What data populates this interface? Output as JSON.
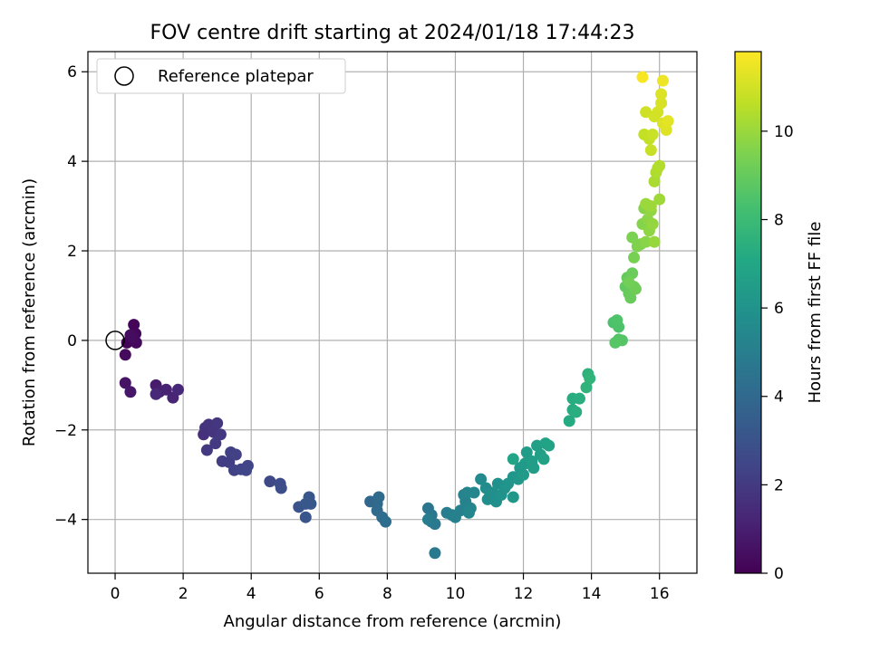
{
  "chart_data": {
    "type": "scatter",
    "title": "FOV centre drift starting at 2024/01/18 17:44:23",
    "xlabel": "Angular distance from reference (arcmin)",
    "ylabel": "Rotation from reference (arcmin)",
    "xlim": [
      -0.8,
      17.1
    ],
    "ylim": [
      -5.2,
      6.45
    ],
    "x_ticks": [
      0,
      2,
      4,
      6,
      8,
      10,
      12,
      14,
      16
    ],
    "y_ticks": [
      -4,
      -2,
      0,
      2,
      4,
      6
    ],
    "grid": true,
    "legend": {
      "position": "top-left",
      "entries": [
        {
          "label": "Reference platepar",
          "marker": "open-circle"
        }
      ]
    },
    "reference_point": {
      "x": 0,
      "y": 0
    },
    "colorbar": {
      "label": "Hours from first FF file",
      "colormap": "viridis",
      "range": [
        0,
        11.8
      ],
      "ticks": [
        0,
        2,
        4,
        6,
        8,
        10
      ]
    },
    "points": [
      [
        0.35,
        -0.05,
        0.1
      ],
      [
        0.55,
        0.35,
        0.15
      ],
      [
        0.6,
        0.15,
        0.2
      ],
      [
        0.62,
        -0.05,
        0.25
      ],
      [
        0.3,
        -0.32,
        0.3
      ],
      [
        0.55,
        0.05,
        0.35
      ],
      [
        0.45,
        0.12,
        0.4
      ],
      [
        0.3,
        -0.95,
        0.6
      ],
      [
        0.45,
        -1.15,
        0.7
      ],
      [
        1.2,
        -1.0,
        0.9
      ],
      [
        1.3,
        -1.15,
        1.0
      ],
      [
        1.5,
        -1.1,
        1.1
      ],
      [
        1.7,
        -1.28,
        1.2
      ],
      [
        1.85,
        -1.1,
        1.3
      ],
      [
        1.2,
        -1.2,
        1.35
      ],
      [
        2.6,
        -2.1,
        1.6
      ],
      [
        2.65,
        -1.95,
        1.7
      ],
      [
        2.75,
        -1.88,
        1.75
      ],
      [
        2.9,
        -2.05,
        1.8
      ],
      [
        3.0,
        -1.85,
        1.85
      ],
      [
        3.1,
        -2.1,
        1.9
      ],
      [
        2.7,
        -2.45,
        1.95
      ],
      [
        2.95,
        -2.3,
        2.0
      ],
      [
        3.15,
        -2.7,
        2.1
      ],
      [
        3.35,
        -2.72,
        2.15
      ],
      [
        3.4,
        -2.5,
        2.2
      ],
      [
        3.55,
        -2.55,
        2.25
      ],
      [
        3.5,
        -2.9,
        2.3
      ],
      [
        3.7,
        -2.88,
        2.35
      ],
      [
        3.9,
        -2.8,
        2.4
      ],
      [
        3.85,
        -2.9,
        2.45
      ],
      [
        4.55,
        -3.15,
        2.6
      ],
      [
        4.85,
        -3.2,
        2.7
      ],
      [
        4.88,
        -3.3,
        2.75
      ],
      [
        5.4,
        -3.72,
        3.0
      ],
      [
        5.6,
        -3.95,
        3.1
      ],
      [
        5.7,
        -3.5,
        3.15
      ],
      [
        5.75,
        -3.65,
        3.2
      ],
      [
        5.6,
        -3.65,
        3.25
      ],
      [
        7.5,
        -3.6,
        3.9
      ],
      [
        7.7,
        -3.65,
        4.0
      ],
      [
        7.75,
        -3.5,
        4.05
      ],
      [
        7.7,
        -3.8,
        4.1
      ],
      [
        7.85,
        -3.95,
        4.15
      ],
      [
        7.95,
        -4.05,
        4.2
      ],
      [
        9.2,
        -3.75,
        4.6
      ],
      [
        9.3,
        -3.9,
        4.65
      ],
      [
        9.3,
        -4.05,
        4.7
      ],
      [
        9.4,
        -4.1,
        4.75
      ],
      [
        9.4,
        -4.75,
        4.8
      ],
      [
        9.2,
        -4.0,
        4.85
      ],
      [
        9.75,
        -3.85,
        5.0
      ],
      [
        9.9,
        -3.9,
        5.05
      ],
      [
        10.0,
        -3.95,
        5.1
      ],
      [
        10.15,
        -3.8,
        5.15
      ],
      [
        10.25,
        -3.45,
        5.2
      ],
      [
        10.3,
        -3.6,
        5.25
      ],
      [
        10.35,
        -3.4,
        5.3
      ],
      [
        10.45,
        -3.75,
        5.35
      ],
      [
        10.55,
        -3.4,
        5.4
      ],
      [
        10.4,
        -3.85,
        5.45
      ],
      [
        10.75,
        -3.1,
        5.6
      ],
      [
        10.9,
        -3.3,
        5.65
      ],
      [
        10.95,
        -3.55,
        5.7
      ],
      [
        11.0,
        -3.5,
        5.75
      ],
      [
        11.1,
        -3.4,
        5.8
      ],
      [
        11.2,
        -3.6,
        5.85
      ],
      [
        11.25,
        -3.2,
        5.9
      ],
      [
        11.35,
        -3.45,
        5.95
      ],
      [
        11.45,
        -3.3,
        6.0
      ],
      [
        11.55,
        -3.2,
        6.1
      ],
      [
        11.7,
        -3.05,
        6.15
      ],
      [
        11.7,
        -3.5,
        6.2
      ],
      [
        11.85,
        -3.1,
        6.25
      ],
      [
        11.9,
        -2.85,
        6.3
      ],
      [
        12.0,
        -3.0,
        6.35
      ],
      [
        12.05,
        -2.75,
        6.4
      ],
      [
        12.1,
        -2.5,
        6.45
      ],
      [
        12.25,
        -2.7,
        6.5
      ],
      [
        12.3,
        -2.85,
        6.55
      ],
      [
        12.4,
        -2.35,
        6.6
      ],
      [
        12.5,
        -2.55,
        6.65
      ],
      [
        12.6,
        -2.65,
        6.7
      ],
      [
        12.65,
        -2.3,
        6.75
      ],
      [
        12.75,
        -2.35,
        6.8
      ],
      [
        11.7,
        -2.65,
        6.85
      ],
      [
        13.35,
        -1.8,
        7.2
      ],
      [
        13.45,
        -1.55,
        7.25
      ],
      [
        13.45,
        -1.3,
        7.3
      ],
      [
        13.55,
        -1.6,
        7.35
      ],
      [
        13.65,
        -1.3,
        7.4
      ],
      [
        13.9,
        -0.75,
        7.55
      ],
      [
        13.85,
        -1.05,
        7.6
      ],
      [
        13.95,
        -0.85,
        7.65
      ],
      [
        14.65,
        0.4,
        8.4
      ],
      [
        14.8,
        0.3,
        8.45
      ],
      [
        14.75,
        0.45,
        8.5
      ],
      [
        14.8,
        0.02,
        8.55
      ],
      [
        14.9,
        0.0,
        8.6
      ],
      [
        14.7,
        -0.05,
        8.65
      ],
      [
        15.0,
        1.2,
        8.9
      ],
      [
        15.05,
        1.4,
        8.95
      ],
      [
        15.1,
        1.05,
        9.0
      ],
      [
        15.15,
        0.95,
        9.05
      ],
      [
        15.2,
        1.5,
        9.1
      ],
      [
        15.25,
        1.2,
        9.15
      ],
      [
        15.3,
        1.15,
        9.2
      ],
      [
        15.1,
        1.3,
        9.25
      ],
      [
        15.25,
        1.85,
        9.4
      ],
      [
        15.2,
        2.3,
        9.45
      ],
      [
        15.35,
        2.1,
        9.5
      ],
      [
        15.45,
        2.15,
        9.55
      ],
      [
        15.5,
        2.6,
        9.6
      ],
      [
        15.55,
        2.95,
        9.65
      ],
      [
        15.6,
        2.2,
        9.7
      ],
      [
        15.65,
        2.7,
        9.75
      ],
      [
        15.7,
        2.45,
        9.8
      ],
      [
        15.75,
        2.9,
        9.85
      ],
      [
        15.8,
        2.6,
        9.9
      ],
      [
        15.85,
        2.2,
        9.95
      ],
      [
        15.6,
        3.05,
        10.0
      ],
      [
        15.75,
        3.0,
        10.05
      ],
      [
        16.0,
        3.15,
        10.1
      ],
      [
        15.85,
        3.55,
        10.3
      ],
      [
        15.9,
        3.75,
        10.35
      ],
      [
        15.95,
        3.85,
        10.4
      ],
      [
        16.0,
        3.9,
        10.45
      ],
      [
        15.55,
        4.6,
        10.7
      ],
      [
        15.7,
        4.5,
        10.75
      ],
      [
        15.75,
        4.25,
        10.8
      ],
      [
        15.8,
        4.6,
        10.85
      ],
      [
        15.6,
        5.1,
        10.95
      ],
      [
        15.85,
        5.0,
        11.0
      ],
      [
        15.95,
        5.1,
        11.05
      ],
      [
        16.05,
        5.3,
        11.1
      ],
      [
        16.05,
        5.5,
        11.15
      ],
      [
        16.1,
        4.85,
        11.2
      ],
      [
        16.2,
        4.7,
        11.25
      ],
      [
        16.25,
        4.9,
        11.3
      ],
      [
        16.1,
        5.8,
        11.5
      ],
      [
        15.5,
        5.88,
        11.7
      ]
    ]
  }
}
